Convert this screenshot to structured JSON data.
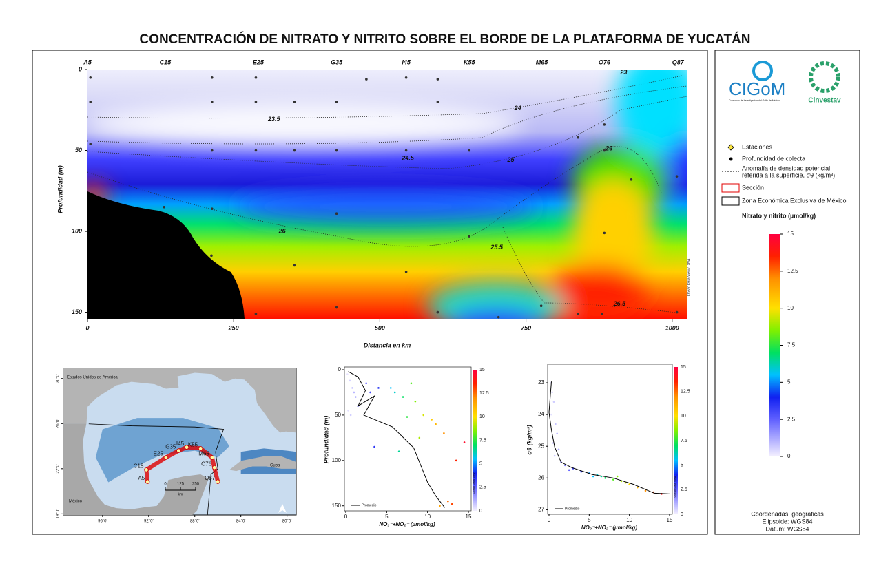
{
  "title": "CONCENTRACIÓN DE NITRATO Y NITRITO SOBRE EL BORDE DE LA PLATAFORMA DE YUCATÁN",
  "chart_data": [
    {
      "type": "contour",
      "xlabel": "Distancia en km",
      "ylabel": "Profundidad (m)",
      "xlim": [
        0,
        1025
      ],
      "ylim": [
        154,
        0
      ],
      "xticks": [
        0,
        250,
        500,
        750,
        1000
      ],
      "yticks": [
        0,
        50,
        100,
        150
      ],
      "stations": {
        "names": [
          "A5",
          "C15",
          "E25",
          "G35",
          "I45",
          "K55",
          "M65",
          "O76",
          "Q87"
        ],
        "x": [
          0,
          133,
          292,
          426,
          545,
          653,
          777,
          884,
          1010
        ]
      },
      "samples": {
        "x": [
          5,
          5,
          5,
          131,
          213,
          213,
          213,
          213,
          212,
          288,
          288,
          288,
          288,
          354,
          354,
          354,
          426,
          426,
          426,
          426,
          477,
          545,
          545,
          545,
          599,
          599,
          599,
          653,
          653,
          703,
          776,
          839,
          839,
          884,
          884,
          884,
          880,
          930,
          1008,
          1008
        ],
        "y": [
          5,
          20,
          46,
          85,
          5,
          20,
          50,
          86,
          115,
          5,
          20,
          50,
          151,
          20,
          50,
          121,
          20,
          50,
          89,
          147,
          6,
          5,
          50,
          125,
          6,
          20,
          150,
          50,
          103,
          153,
          146,
          42,
          151,
          34,
          50,
          101,
          151,
          68,
          66,
          150
        ]
      },
      "contour_labels": [
        {
          "value": 23,
          "x": 917,
          "y": 2
        },
        {
          "value": 23.5,
          "x": 319,
          "y": 31
        },
        {
          "value": 24,
          "x": 736,
          "y": 24
        },
        {
          "value": 24.5,
          "x": 548,
          "y": 55
        },
        {
          "value": 25,
          "x": 724,
          "y": 56
        },
        {
          "value": 25.5,
          "x": 700,
          "y": 110
        },
        {
          "value": 26,
          "x": 333,
          "y": 100
        },
        {
          "value": 26,
          "x": 892,
          "y": 49
        },
        {
          "value": 26.5,
          "x": 910,
          "y": 145
        }
      ],
      "credit": "Ocean Data View / DIVA"
    },
    {
      "type": "scatter",
      "xlabel": "NO₃⁻+NO₂⁻ (µmol/kg)",
      "ylabel": "Profundidad (m)",
      "xlim": [
        0,
        15
      ],
      "ylim": [
        154,
        0
      ],
      "xticks": [
        0,
        5,
        10,
        15
      ],
      "yticks": [
        0,
        50,
        100,
        150
      ],
      "points": {
        "x": [
          0.2,
          0.5,
          0.8,
          1.2,
          1.5,
          0.3,
          0.6,
          2.5,
          3,
          4,
          5.5,
          6,
          7,
          8,
          8.5,
          9.5,
          10.5,
          11,
          12,
          3.5,
          6.5,
          9,
          13.5,
          12.5,
          14.5,
          1,
          7.5,
          11.5,
          13
        ],
        "y": [
          5,
          12,
          20,
          30,
          40,
          45,
          50,
          15,
          25,
          20,
          20,
          25,
          30,
          15,
          35,
          50,
          55,
          60,
          70,
          85,
          90,
          75,
          100,
          145,
          80,
          25,
          52,
          150,
          148
        ]
      },
      "series": [
        {
          "name": "Promedio",
          "color": "#000000",
          "x": [
            0.3,
            1.5,
            2.4,
            1.5,
            3.5,
            2.2,
            5.7,
            8.3,
            10,
            11,
            12.1
          ],
          "values": [
            2,
            8,
            23,
            40,
            29,
            50,
            63,
            86,
            124,
            139,
            152
          ]
        }
      ],
      "colorbar_ticks": [
        0,
        2.5,
        5,
        7.5,
        10,
        12.5,
        15
      ],
      "credit": "Ocean Data View"
    },
    {
      "type": "scatter",
      "xlabel": "NO₃⁻+NO₂⁻ (µmol/kg)",
      "ylabel": "σθ (kg/m³)",
      "xlim": [
        0,
        15
      ],
      "ylim": [
        27.1,
        22.5
      ],
      "xticks": [
        0,
        5,
        10,
        15
      ],
      "yticks": [
        23,
        24,
        25,
        26,
        27
      ],
      "points": {
        "x": [
          0.2,
          0.4,
          0.6,
          0.3,
          0.8,
          1,
          0.5,
          1.2,
          0.7,
          1.5,
          2,
          3,
          4,
          5,
          6,
          6.5,
          7,
          8,
          8.5,
          9,
          10,
          11,
          12,
          13,
          14,
          2.5,
          5.5,
          9.5
        ],
        "y": [
          23,
          23.3,
          23.6,
          24,
          24.3,
          24.6,
          24.9,
          25.1,
          25.3,
          25.5,
          25.6,
          25.7,
          25.8,
          25.85,
          25.9,
          25.95,
          26,
          26.05,
          25.95,
          26.1,
          26.2,
          26.3,
          26.4,
          26.45,
          26.5,
          25.75,
          25.95,
          26.15
        ]
      },
      "series": [
        {
          "name": "Promedio",
          "color": "#000000",
          "x": [
            0.3,
            0,
            0.3,
            0.7,
            1.5,
            2.8,
            5.4,
            8,
            10.5,
            13.1,
            15
          ],
          "values": [
            22.96,
            23.93,
            24.48,
            25.02,
            25.5,
            25.67,
            25.89,
            26,
            26.2,
            26.48,
            26.5
          ]
        }
      ],
      "colorbar_ticks": [
        0,
        2.5,
        5,
        7.5,
        10,
        12.5,
        15
      ],
      "credit": "Ocean Data View"
    }
  ],
  "colorbar": {
    "title": "Nitrato y nitrito (µmol/kg)",
    "lim": [
      0,
      15
    ],
    "ticks": [
      0,
      2.5,
      5,
      7.5,
      10,
      12.5,
      15
    ]
  },
  "map": {
    "xlim": [
      -99.4,
      -79.2
    ],
    "ylim": [
      17.9,
      30.9
    ],
    "xticks": [
      {
        "value": -96,
        "label": "96°0'"
      },
      {
        "value": -92,
        "label": "92°0'"
      },
      {
        "value": -88,
        "label": "88°0'"
      },
      {
        "value": -84,
        "label": "84°0'"
      },
      {
        "value": -80,
        "label": "80°0'"
      }
    ],
    "yticks": [
      {
        "value": 18,
        "label": "18°0'"
      },
      {
        "value": 22,
        "label": "22°0'"
      },
      {
        "value": 26,
        "label": "26°0'"
      },
      {
        "value": 30,
        "label": "30°0'"
      }
    ],
    "places": [
      "Estados Unidos de América",
      "México",
      "Cuba"
    ],
    "scalebar": {
      "ticks": [
        0,
        125,
        250
      ],
      "unit": "km"
    },
    "station_lon": [
      -92.1,
      -92.2,
      -90.5,
      -89.4,
      -88.7,
      -87.5,
      -86.5,
      -86.3,
      -86.0
    ],
    "station_lat": [
      20.85,
      21.9,
      23.0,
      23.6,
      23.9,
      23.8,
      23.0,
      22.1,
      20.85
    ]
  },
  "legend": [
    "Estaciones",
    "Profundidad de colecta",
    "Anomalía de densidad potencial",
    "referida a la superficie, σθ (kg/m³)",
    "Sección",
    "Zona Económica Exclusiva de México"
  ],
  "logos": [
    "CIGoM",
    "Consorcio de Investigación del Golfo de México",
    "Cinvestav"
  ],
  "notes": [
    "Coordenadas: geográficas",
    "Elipsoide: WGS84",
    "Datum: WGS84"
  ]
}
